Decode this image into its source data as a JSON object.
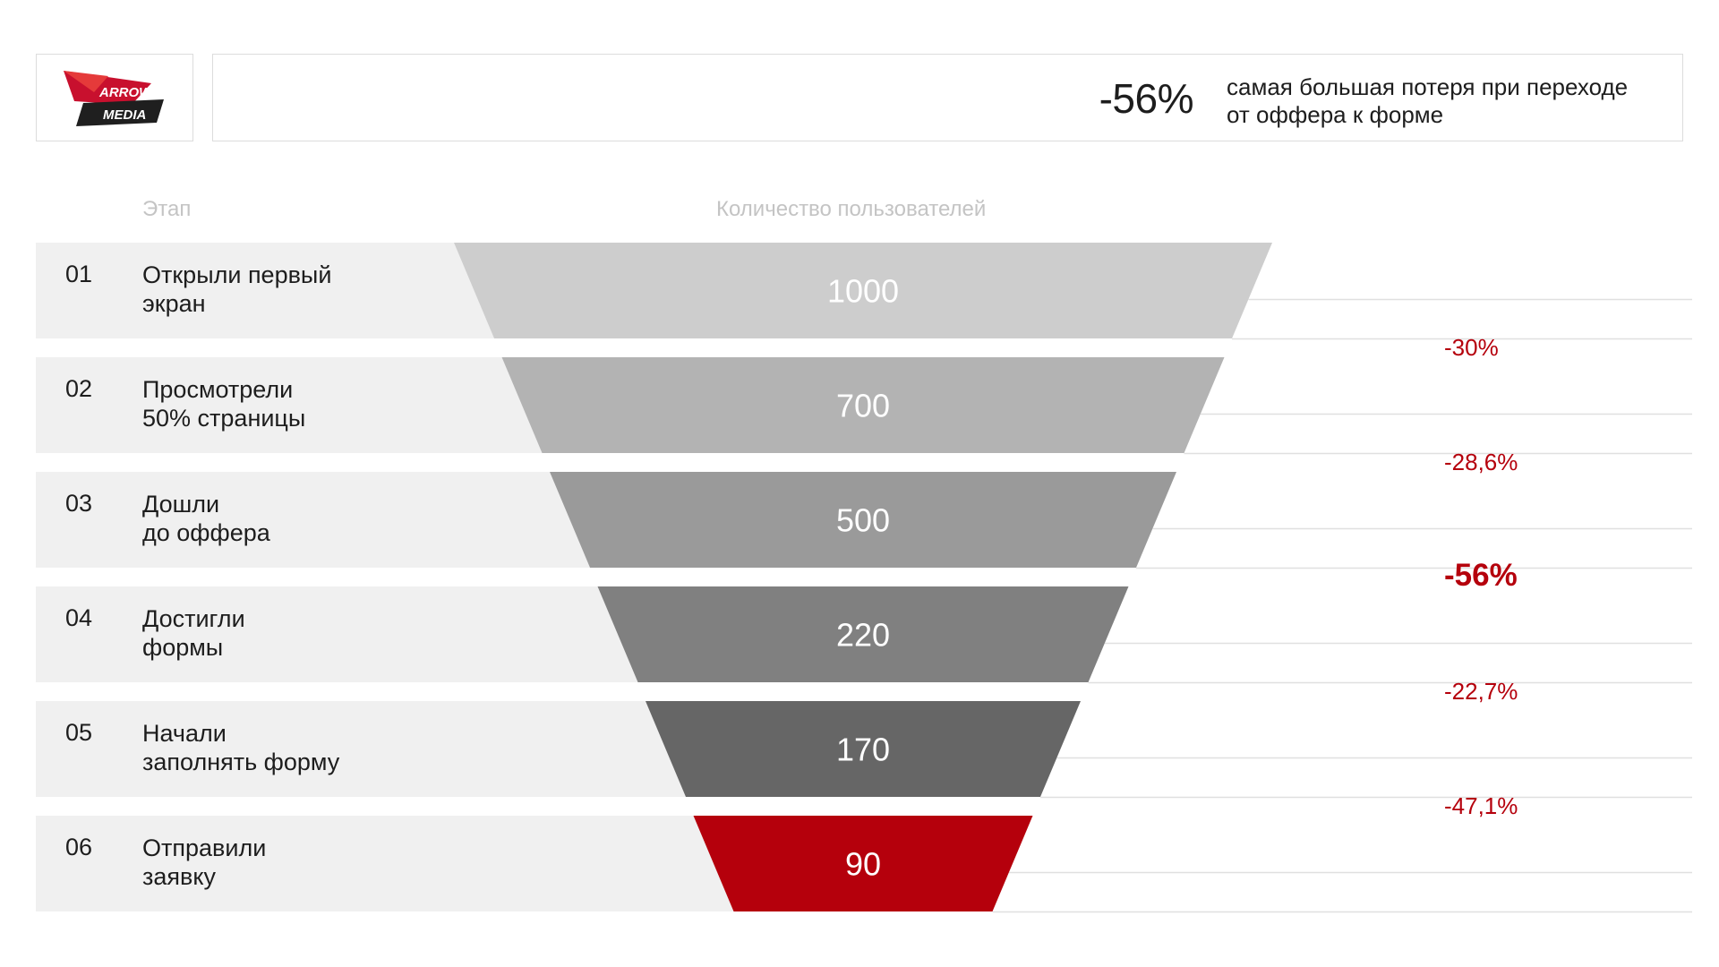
{
  "logo": {
    "line1": "ARROW",
    "line2": "MEDIA"
  },
  "header": {
    "big_value": "-56%",
    "description_line1": "самая большая потеря при переходе",
    "description_line2": "от оффера к форме"
  },
  "columns": {
    "stage": "Этап",
    "users": "Количество пользователей"
  },
  "colors": {
    "accent": "#b5000c",
    "row_bg": "#f0f0f0",
    "stage_fills": [
      "#cdcdcd",
      "#b3b3b3",
      "#9a9a9a",
      "#808080",
      "#666666",
      "#b5000c"
    ]
  },
  "chart_data": {
    "type": "funnel",
    "x_label": "Количество пользователей",
    "stages": [
      {
        "num": "01",
        "label_line1": "Открыли первый",
        "label_line2": "экран",
        "value": 1000
      },
      {
        "num": "02",
        "label_line1": "Просмотрели",
        "label_line2": "50% страницы",
        "value": 700
      },
      {
        "num": "03",
        "label_line1": "Дошли",
        "label_line2": "до оффера",
        "value": 500
      },
      {
        "num": "04",
        "label_line1": "Достигли",
        "label_line2": "формы",
        "value": 220
      },
      {
        "num": "05",
        "label_line1": "Начали",
        "label_line2": "заполнять форму",
        "value": 170
      },
      {
        "num": "06",
        "label_line1": "Отправили",
        "label_line2": "заявку",
        "value": 90
      }
    ],
    "drops": [
      {
        "text": "-30%",
        "highlight": false
      },
      {
        "text": "-28,6%",
        "highlight": false
      },
      {
        "text": "-56%",
        "highlight": true
      },
      {
        "text": "-22,7%",
        "highlight": false
      },
      {
        "text": "-47,1%",
        "highlight": false
      }
    ]
  }
}
